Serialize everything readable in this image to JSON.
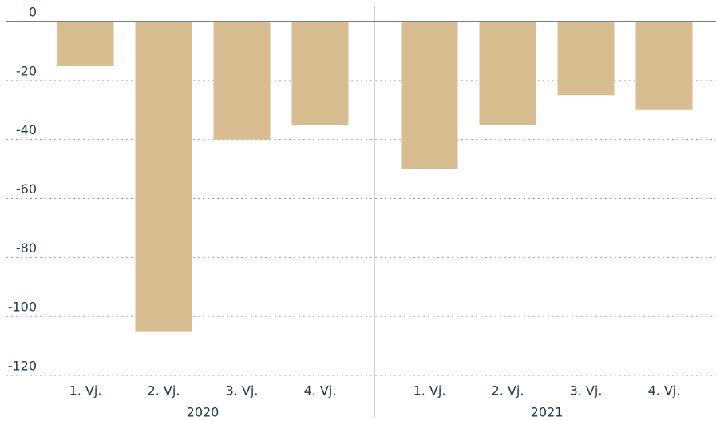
{
  "chart_data": {
    "type": "bar",
    "categories": [
      "1. Vj.",
      "2. Vj.",
      "3. Vj.",
      "4. Vj.",
      "1. Vj.",
      "2. Vj.",
      "3. Vj.",
      "4. Vj."
    ],
    "groups": [
      "2020",
      "2021"
    ],
    "values": [
      -15,
      -105,
      -40,
      -35,
      -50,
      -35,
      -25,
      -30
    ],
    "color": "#d8bd91",
    "ylim": [
      -120,
      0
    ],
    "yticks": [
      0,
      -20,
      -40,
      -60,
      -80,
      -100,
      -120
    ],
    "grid": true
  }
}
